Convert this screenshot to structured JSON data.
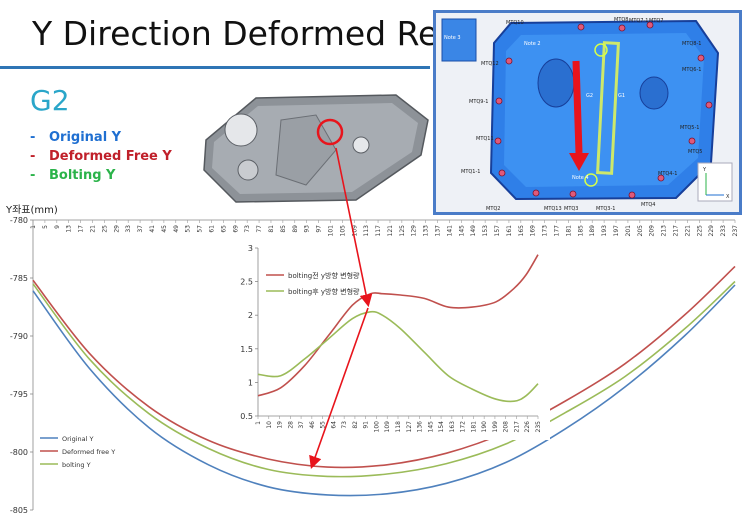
{
  "slide": {
    "title": "Y Direction Deformed Result",
    "group_label": "G2",
    "legend": [
      {
        "dash": "-",
        "label": "Original Y",
        "color": "#1f6fd1"
      },
      {
        "dash": "-",
        "label": "Deformed Free Y",
        "color": "#c0202a"
      },
      {
        "dash": "-",
        "label": "Bolting Y",
        "color": "#2bb34a"
      }
    ],
    "y_axis_label": "Y좌표(mm)",
    "photo_labels": [
      "MTQ8-1",
      "MTQ8",
      "MTQ7-1",
      "MTQ7",
      "MTQ6-1",
      "MTQ10",
      "MTQ9-1",
      "MTQ5-1",
      "MTQ5",
      "MTQ4-1",
      "MTQ4",
      "MTQ3-1",
      "MTQ3",
      "MTQ2",
      "MTQ1-1",
      "MTQ11",
      "MTQ12",
      "MTQ13",
      "Note 3",
      "Note 2",
      "Note 4",
      "G2",
      "G1"
    ],
    "photo_axis": {
      "x": "X",
      "y": "Y"
    }
  },
  "chart_data": [
    {
      "type": "line",
      "x_ticks": [
        1,
        5,
        9,
        13,
        17,
        21,
        25,
        29,
        33,
        37,
        41,
        45,
        49,
        53,
        57,
        61,
        65,
        69,
        73,
        77,
        81,
        85,
        89,
        93,
        97,
        101,
        105,
        109,
        113,
        117,
        121,
        125,
        129,
        133,
        137,
        141,
        145,
        149,
        153,
        157,
        161,
        165,
        169,
        173,
        177,
        181,
        185,
        189,
        193,
        197,
        201,
        205,
        209,
        213,
        217,
        221,
        225,
        229,
        233,
        237
      ],
      "ylim": [
        -805,
        -780
      ],
      "y_ticks": [
        -780,
        -785,
        -790,
        -795,
        -800,
        -805
      ],
      "legend_placement": "bottom-left",
      "grid": false,
      "x": [
        1,
        20,
        40,
        60,
        80,
        100,
        120,
        140,
        160,
        180,
        200,
        220,
        237
      ],
      "series": [
        {
          "name": "Original Y",
          "color": "#4f81bd",
          "values": [
            -786.1,
            -792.8,
            -797.9,
            -801.1,
            -803.0,
            -803.7,
            -803.6,
            -802.7,
            -800.9,
            -798.0,
            -794.4,
            -790.0,
            -785.6
          ]
        },
        {
          "name": "Deformed free Y",
          "color": "#c0504d",
          "values": [
            -785.2,
            -791.5,
            -796.1,
            -799.0,
            -800.6,
            -801.3,
            -801.1,
            -800.1,
            -798.3,
            -795.6,
            -792.4,
            -788.2,
            -784.0
          ]
        },
        {
          "name": "bolting Y",
          "color": "#9bbb59",
          "values": [
            -785.5,
            -792.0,
            -796.7,
            -799.7,
            -801.5,
            -802.1,
            -801.9,
            -801.0,
            -799.3,
            -796.6,
            -793.5,
            -789.4,
            -785.3
          ]
        }
      ]
    },
    {
      "type": "line",
      "x_ticks": [
        1,
        10,
        19,
        28,
        37,
        46,
        55,
        64,
        73,
        82,
        91,
        100,
        109,
        118,
        127,
        136,
        145,
        154,
        163,
        172,
        181,
        190,
        199,
        208,
        217,
        226,
        235
      ],
      "ylim": [
        0.5,
        3
      ],
      "y_ticks": [
        "0.5",
        "1",
        "1.5",
        "2",
        "2.5",
        "3"
      ],
      "legend_placement": "top-left",
      "grid": false,
      "x": [
        1,
        20,
        40,
        60,
        80,
        95,
        105,
        120,
        140,
        160,
        180,
        200,
        215,
        225,
        235
      ],
      "series": [
        {
          "name": "bolting전 y방향 변형량",
          "color": "#c0504d",
          "values": [
            0.8,
            0.92,
            1.25,
            1.7,
            2.15,
            2.32,
            2.32,
            2.3,
            2.25,
            2.12,
            2.12,
            2.2,
            2.4,
            2.6,
            2.9
          ]
        },
        {
          "name": "bolting후 y방향 변형량",
          "color": "#9bbb59",
          "values": [
            1.12,
            1.1,
            1.35,
            1.65,
            1.95,
            2.05,
            2.0,
            1.8,
            1.45,
            1.1,
            0.9,
            0.75,
            0.72,
            0.8,
            0.98
          ]
        }
      ]
    }
  ]
}
